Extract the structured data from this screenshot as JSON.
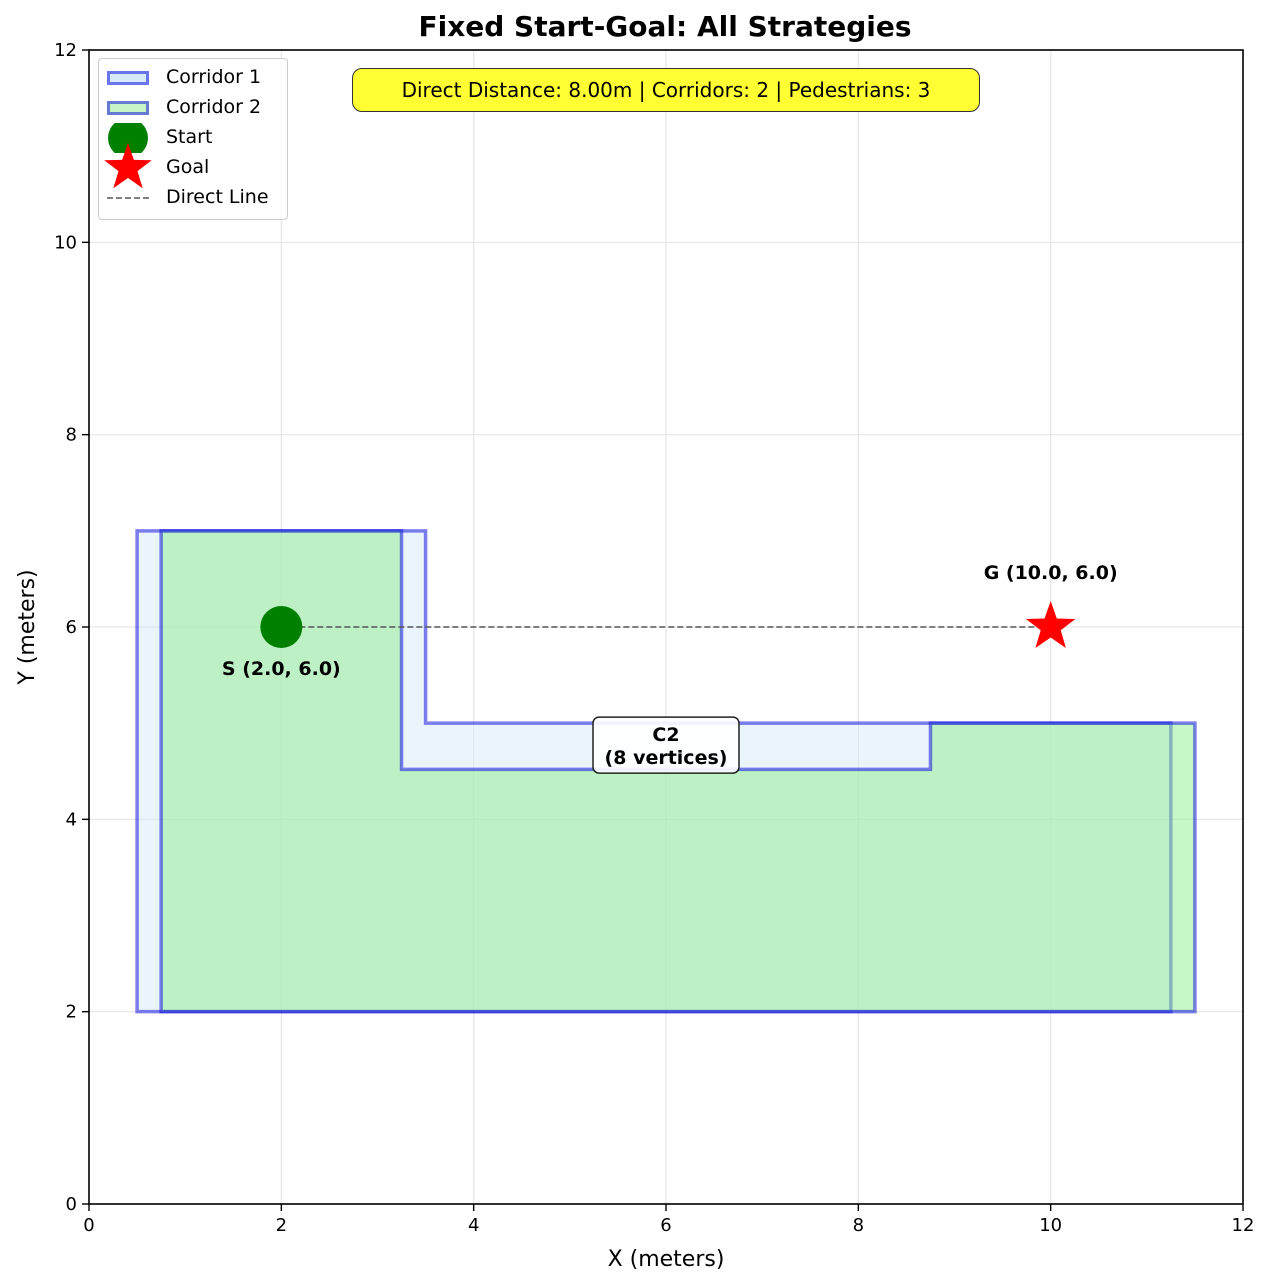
{
  "chart_data": {
    "type": "scatter",
    "title": "Fixed Start-Goal: All Strategies",
    "xlabel": "X (meters)",
    "ylabel": "Y (meters)",
    "xlim": [
      0,
      12
    ],
    "ylim": [
      0,
      12
    ],
    "xticks": [
      0,
      2,
      4,
      6,
      8,
      10,
      12
    ],
    "yticks": [
      0,
      2,
      4,
      6,
      8,
      10,
      12
    ],
    "grid": true,
    "legend_placement": "upper-left",
    "corridors": [
      {
        "name": "Corridor 1",
        "fill": "#d6eaf8",
        "edge": "#0000dd",
        "vertices": [
          [
            0.5,
            2.0
          ],
          [
            11.25,
            2.0
          ],
          [
            11.25,
            5.0
          ],
          [
            3.5,
            5.0
          ],
          [
            3.5,
            7.0
          ],
          [
            0.5,
            7.0
          ]
        ]
      },
      {
        "name": "Corridor 2",
        "fill": "#90ee90",
        "edge": "#0000dd",
        "vertices": [
          [
            0.75,
            2.0
          ],
          [
            11.5,
            2.0
          ],
          [
            11.5,
            5.0
          ],
          [
            8.75,
            5.0
          ],
          [
            8.75,
            4.52
          ],
          [
            3.25,
            4.52
          ],
          [
            3.25,
            7.0
          ],
          [
            0.75,
            7.0
          ]
        ]
      }
    ],
    "corridor_annotation": {
      "text_line1": "C2",
      "text_line2": "(8 vertices)",
      "x": 6.0,
      "y": 4.72
    },
    "start": {
      "name": "Start",
      "x": 2.0,
      "y": 6.0,
      "label": "S (2.0, 6.0)",
      "color": "#008000"
    },
    "goal": {
      "name": "Goal",
      "x": 10.0,
      "y": 6.0,
      "label": "G (10.0, 6.0)",
      "color": "#ff0000"
    },
    "direct_line": {
      "name": "Direct Line",
      "x": [
        2.0,
        10.0
      ],
      "y": [
        6.0,
        6.0
      ],
      "color": "#555555"
    },
    "info_text": "Direct Distance: 8.00m | Corridors: 2 | Pedestrians: 3",
    "info_box_color": "#ffff33"
  }
}
